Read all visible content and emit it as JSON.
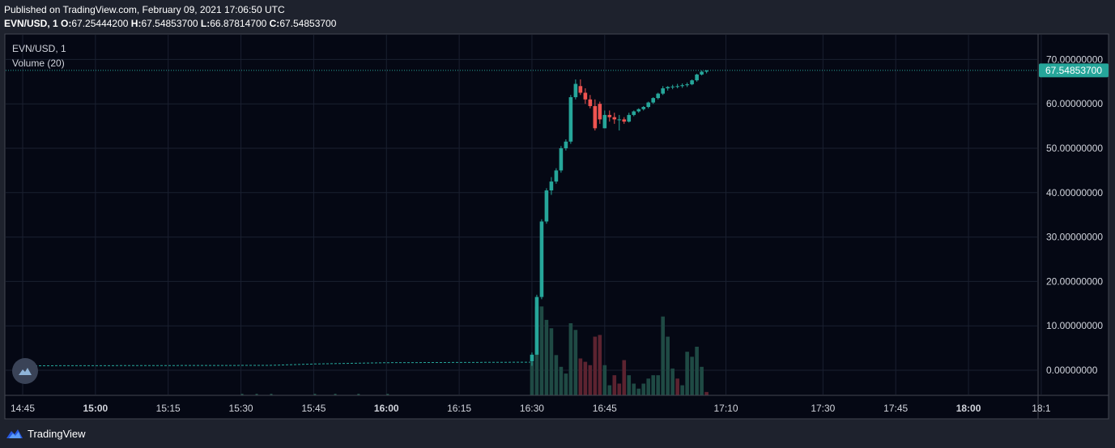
{
  "header": {
    "published": "Published on TradingView.com, February 09, 2021 17:06:50 UTC",
    "symbol": "EVN/USD, 1",
    "o_label": "O:",
    "o_value": "67.25444200",
    "h_label": "H:",
    "h_value": "67.54853700",
    "l_label": "L:",
    "l_value": "66.87814700",
    "c_label": "C:",
    "c_value": "67.54853700"
  },
  "legend": {
    "symbol": "EVN/USD, 1",
    "volume": "Volume (20)"
  },
  "price_badge": "67.54853700",
  "footer": {
    "brand": "TradingView"
  },
  "colors": {
    "background": "#050814",
    "frame": "#1e222d",
    "up": "#26a69a",
    "down": "#ef5350",
    "vol_up": "#1f4a44",
    "vol_down": "#5c2330",
    "grid": "#1a2030",
    "axis_text": "#d1d4dc"
  },
  "chart_data": {
    "type": "candlestick",
    "title": "EVN/USD, 1",
    "y_ticks": [
      "70.00000000",
      "60.00000000",
      "50.00000000",
      "40.00000000",
      "30.00000000",
      "20.00000000",
      "10.00000000",
      "0.00000000"
    ],
    "y_tick_values": [
      70,
      60,
      50,
      40,
      30,
      20,
      10,
      0
    ],
    "x_ticks": [
      {
        "label": "14:45",
        "bold": false
      },
      {
        "label": "15:00",
        "bold": true
      },
      {
        "label": "15:15",
        "bold": false
      },
      {
        "label": "15:30",
        "bold": false
      },
      {
        "label": "15:45",
        "bold": false
      },
      {
        "label": "16:00",
        "bold": true
      },
      {
        "label": "16:15",
        "bold": false
      },
      {
        "label": "16:30",
        "bold": false
      },
      {
        "label": "16:45",
        "bold": false
      },
      {
        "label": "17:10",
        "bold": false
      },
      {
        "label": "17:30",
        "bold": false
      },
      {
        "label": "17:45",
        "bold": false
      },
      {
        "label": "18:00",
        "bold": true
      },
      {
        "label": "18:1",
        "bold": false
      }
    ],
    "last_price": 67.548537,
    "pre_line": [
      [
        14.75,
        1.0
      ],
      [
        15.6,
        1.1
      ],
      [
        15.75,
        1.4
      ],
      [
        16.0,
        1.7
      ],
      [
        16.5,
        1.8
      ]
    ],
    "candles": [
      {
        "t": "16:30",
        "o": 2.0,
        "h": 4.0,
        "l": 1.0,
        "c": 3.5,
        "v": 20
      },
      {
        "t": "16:31",
        "o": 3.5,
        "h": 17.0,
        "l": 3.5,
        "c": 16.5,
        "v": 53
      },
      {
        "t": "16:32",
        "o": 16.5,
        "h": 34.0,
        "l": 16.0,
        "c": 33.5,
        "v": 53
      },
      {
        "t": "16:33",
        "o": 33.5,
        "h": 41.0,
        "l": 33.0,
        "c": 40.5,
        "v": 45
      },
      {
        "t": "16:34",
        "o": 40.5,
        "h": 43.5,
        "l": 39.5,
        "c": 42.5,
        "v": 40
      },
      {
        "t": "16:35",
        "o": 42.5,
        "h": 45.5,
        "l": 42.0,
        "c": 45.0,
        "v": 24
      },
      {
        "t": "16:36",
        "o": 45.0,
        "h": 50.5,
        "l": 44.5,
        "c": 50.0,
        "v": 17
      },
      {
        "t": "16:37",
        "o": 50.0,
        "h": 52.0,
        "l": 49.5,
        "c": 51.5,
        "v": 13
      },
      {
        "t": "16:38",
        "o": 51.5,
        "h": 62.0,
        "l": 51.0,
        "c": 61.5,
        "v": 43
      },
      {
        "t": "16:39",
        "o": 61.5,
        "h": 65.5,
        "l": 61.0,
        "c": 64.5,
        "v": 39
      },
      {
        "t": "16:40",
        "o": 64.0,
        "h": 65.5,
        "l": 62.0,
        "c": 62.5,
        "v": 22
      },
      {
        "t": "16:41",
        "o": 62.5,
        "h": 63.5,
        "l": 60.0,
        "c": 61.0,
        "v": 20
      },
      {
        "t": "16:42",
        "o": 61.0,
        "h": 62.0,
        "l": 59.0,
        "c": 59.5,
        "v": 18
      },
      {
        "t": "16:43",
        "o": 59.5,
        "h": 61.0,
        "l": 54.0,
        "c": 54.5,
        "v": 35
      },
      {
        "t": "16:44",
        "o": 60.0,
        "h": 60.5,
        "l": 55.5,
        "c": 56.5,
        "v": 36
      },
      {
        "t": "16:45",
        "o": 54.5,
        "h": 58.5,
        "l": 54.5,
        "c": 57.5,
        "v": 18
      },
      {
        "t": "16:46",
        "o": 57.5,
        "h": 58.5,
        "l": 56.0,
        "c": 57.0,
        "v": 6
      },
      {
        "t": "16:47",
        "o": 57.0,
        "h": 58.0,
        "l": 55.5,
        "c": 56.5,
        "v": 12
      },
      {
        "t": "16:48",
        "o": 56.5,
        "h": 57.5,
        "l": 54.0,
        "c": 56.5,
        "v": 7
      },
      {
        "t": "16:49",
        "o": 56.5,
        "h": 57.0,
        "l": 55.5,
        "c": 56.0,
        "v": 21
      },
      {
        "t": "16:50",
        "o": 56.0,
        "h": 58.0,
        "l": 55.8,
        "c": 57.5,
        "v": 12
      },
      {
        "t": "16:51",
        "o": 57.5,
        "h": 58.5,
        "l": 57.2,
        "c": 58.3,
        "v": 7
      },
      {
        "t": "16:52",
        "o": 58.3,
        "h": 59.0,
        "l": 58.0,
        "c": 58.8,
        "v": 4
      },
      {
        "t": "16:53",
        "o": 58.8,
        "h": 59.5,
        "l": 58.5,
        "c": 59.3,
        "v": 7
      },
      {
        "t": "16:54",
        "o": 59.3,
        "h": 60.5,
        "l": 59.0,
        "c": 60.3,
        "v": 10
      },
      {
        "t": "16:55",
        "o": 60.3,
        "h": 61.5,
        "l": 60.0,
        "c": 61.3,
        "v": 12
      },
      {
        "t": "16:56",
        "o": 61.3,
        "h": 62.5,
        "l": 61.0,
        "c": 62.3,
        "v": 12
      },
      {
        "t": "16:57",
        "o": 62.3,
        "h": 64.0,
        "l": 62.0,
        "c": 63.5,
        "v": 47
      },
      {
        "t": "16:58",
        "o": 63.5,
        "h": 64.0,
        "l": 63.0,
        "c": 63.8,
        "v": 35
      },
      {
        "t": "16:59",
        "o": 63.8,
        "h": 64.3,
        "l": 63.3,
        "c": 63.9,
        "v": 16
      },
      {
        "t": "17:00",
        "o": 63.9,
        "h": 64.5,
        "l": 63.5,
        "c": 64.0,
        "v": 10
      },
      {
        "t": "17:01",
        "o": 64.0,
        "h": 64.6,
        "l": 63.6,
        "c": 64.2,
        "v": 6
      },
      {
        "t": "17:02",
        "o": 64.2,
        "h": 64.8,
        "l": 63.8,
        "c": 64.4,
        "v": 26
      },
      {
        "t": "17:03",
        "o": 64.4,
        "h": 65.5,
        "l": 64.2,
        "c": 65.3,
        "v": 23
      },
      {
        "t": "17:04",
        "o": 65.3,
        "h": 66.8,
        "l": 65.0,
        "c": 66.6,
        "v": 29
      },
      {
        "t": "17:05",
        "o": 66.6,
        "h": 67.5,
        "l": 66.4,
        "c": 67.25,
        "v": 17
      },
      {
        "t": "17:06",
        "o": 67.254442,
        "h": 67.548537,
        "l": 66.878147,
        "c": 67.548537,
        "v": 2
      }
    ],
    "volume_colors": [
      "up",
      "up",
      "up",
      "up",
      "up",
      "up",
      "up",
      "up",
      "up",
      "up",
      "down",
      "down",
      "down",
      "down",
      "down",
      "up",
      "up",
      "down",
      "down",
      "down",
      "up",
      "up",
      "up",
      "up",
      "up",
      "up",
      "up",
      "up",
      "up",
      "up",
      "down",
      "up",
      "up",
      "up",
      "up",
      "up",
      "down"
    ]
  }
}
